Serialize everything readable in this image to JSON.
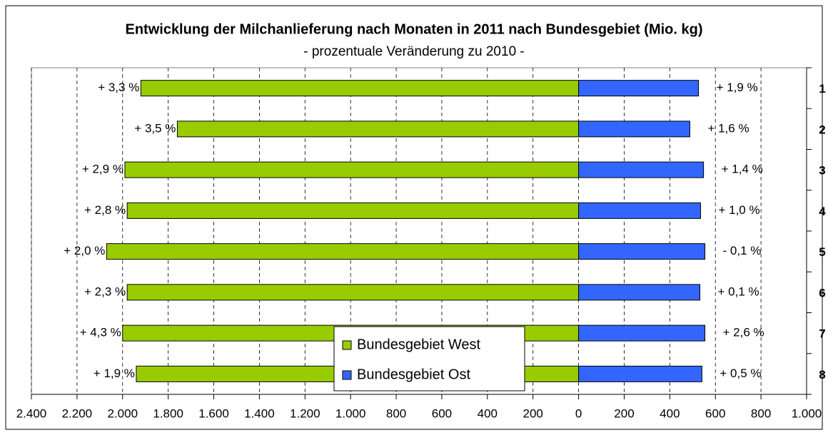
{
  "chart_data": {
    "type": "bar",
    "orientation": "horizontal",
    "title": "Entwicklung der Milchanlieferung nach Monaten in 2011 nach Bundesgebiet (Mio. kg)",
    "subtitle": "- prozentuale Veränderung zu 2010 -",
    "categories": [
      "1",
      "2",
      "3",
      "4",
      "5",
      "6",
      "7",
      "8"
    ],
    "series": [
      {
        "name": "Bundesgebiet West",
        "color": "#99cc00",
        "values": [
          -1920,
          -1760,
          -1990,
          -1980,
          -2070,
          -1980,
          -2000,
          -1940
        ],
        "change_labels": [
          "+ 3,3 %",
          "+ 3,5 %",
          "+ 2,9 %",
          "+ 2,8 %",
          "+ 2,0 %",
          "+ 2,3 %",
          "+ 4,3 %",
          "+ 1,9 %"
        ]
      },
      {
        "name": "Bundesgebiet Ost",
        "color": "#3366ff",
        "values": [
          526,
          488,
          548,
          535,
          554,
          532,
          554,
          541
        ],
        "change_labels": [
          "+ 1,9 %",
          "+ 1,6 %",
          "+ 1,4 %",
          "+ 1,0 %",
          "- 0,1 %",
          "+ 0,1 %",
          "+ 2,6 %",
          "+ 0,5 %"
        ]
      }
    ],
    "xlim": [
      -2400,
      1000
    ],
    "xticks": [
      {
        "value": -2400,
        "label": "2.400"
      },
      {
        "value": -2200,
        "label": "2.200"
      },
      {
        "value": -2000,
        "label": "2.000"
      },
      {
        "value": -1800,
        "label": "1.800"
      },
      {
        "value": -1600,
        "label": "1.600"
      },
      {
        "value": -1400,
        "label": "1.400"
      },
      {
        "value": -1200,
        "label": "1.200"
      },
      {
        "value": -1000,
        "label": "1.000"
      },
      {
        "value": -800,
        "label": "800"
      },
      {
        "value": -600,
        "label": "600"
      },
      {
        "value": -400,
        "label": "400"
      },
      {
        "value": -200,
        "label": "200"
      },
      0,
      200,
      400,
      600,
      800,
      {
        "value": 1000,
        "label": "1.000"
      }
    ],
    "grid": true,
    "legend": "bottom"
  }
}
